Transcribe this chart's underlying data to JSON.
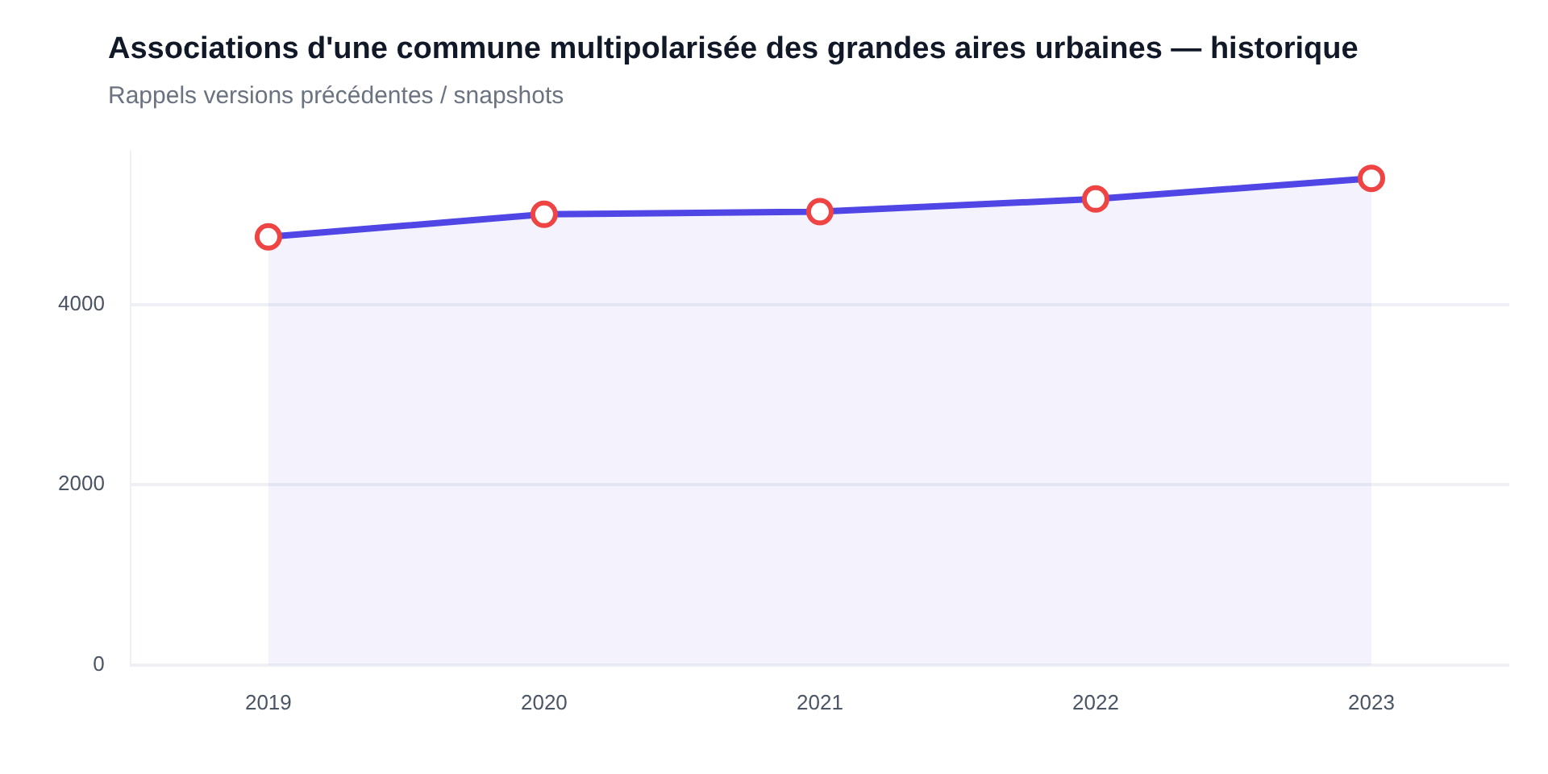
{
  "chart_data": {
    "type": "area",
    "title": "Associations d'une commune multipolarisée des grandes aires urbaines — historique",
    "subtitle": "Rappels versions précédentes / snapshots",
    "categories": [
      "2019",
      "2020",
      "2021",
      "2022",
      "2023"
    ],
    "series": [
      {
        "color": "#4f46e5",
        "values": [
          4750,
          5000,
          5030,
          5170,
          5400
        ]
      }
    ],
    "ylim": [
      0,
      5700
    ],
    "yticks": [
      0,
      2000,
      4000
    ],
    "grid": "y",
    "legend": false,
    "marker": "circle",
    "line_style": "solid"
  }
}
